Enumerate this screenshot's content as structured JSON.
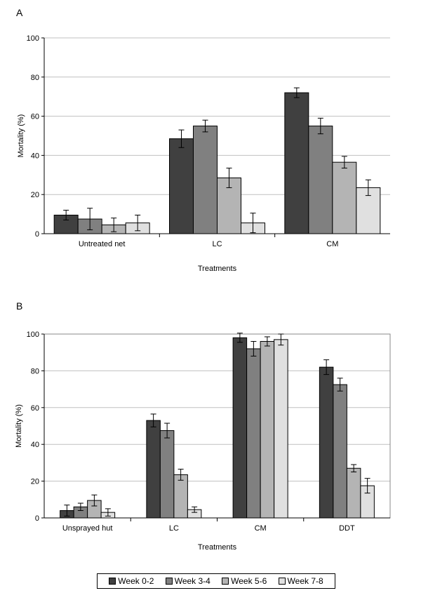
{
  "colors": {
    "series": [
      "#404040",
      "#808080",
      "#b4b4b4",
      "#e0e0e0"
    ],
    "grid": "#c0c0c0",
    "axis": "#000000"
  },
  "chart_data": [
    {
      "panel": "A",
      "type": "bar",
      "title": "",
      "xlabel": "Treatments",
      "ylabel": "Mortality (%)",
      "ylim": [
        0,
        100
      ],
      "yticks": [
        "0",
        "20",
        "40",
        "60",
        "80",
        "100"
      ],
      "categories": [
        "Untreated net",
        "LC",
        "CM"
      ],
      "series": [
        {
          "name": "Week 0-2",
          "values": [
            9.5,
            48.5,
            72
          ],
          "errors": [
            2.5,
            4.5,
            2.5
          ]
        },
        {
          "name": "Week 3-4",
          "values": [
            7.5,
            55,
            55
          ],
          "errors": [
            5.5,
            3,
            4
          ]
        },
        {
          "name": "Week 5-6",
          "values": [
            4.5,
            28.5,
            36.5
          ],
          "errors": [
            3.5,
            5,
            3
          ]
        },
        {
          "name": "Week 7-8",
          "values": [
            5.5,
            5.5,
            23.5
          ],
          "errors": [
            4,
            5,
            4
          ]
        }
      ],
      "grid": true
    },
    {
      "panel": "B",
      "type": "bar",
      "title": "",
      "xlabel": "Treatments",
      "ylabel": "Mortality (%)",
      "ylim": [
        0,
        100
      ],
      "yticks": [
        "0",
        "20",
        "40",
        "60",
        "80",
        "100"
      ],
      "categories": [
        "Unsprayed hut",
        "LC",
        "CM",
        "DDT"
      ],
      "series": [
        {
          "name": "Week 0-2",
          "values": [
            4,
            53,
            98,
            82
          ],
          "errors": [
            3,
            3.5,
            2.5,
            4
          ]
        },
        {
          "name": "Week 3-4",
          "values": [
            6,
            47.5,
            92,
            72.5
          ],
          "errors": [
            2,
            4,
            4,
            3.5
          ]
        },
        {
          "name": "Week 5-6",
          "values": [
            9.5,
            23.5,
            96,
            27
          ],
          "errors": [
            3,
            3,
            2.5,
            2
          ]
        },
        {
          "name": "Week 7-8",
          "values": [
            3,
            4.5,
            97,
            17.5
          ],
          "errors": [
            2,
            1.5,
            3,
            4
          ]
        }
      ],
      "grid": true
    }
  ],
  "legend": {
    "position": "bottom",
    "items": [
      "Week 0-2",
      "Week 3-4",
      "Week 5-6",
      "Week 7-8"
    ]
  }
}
